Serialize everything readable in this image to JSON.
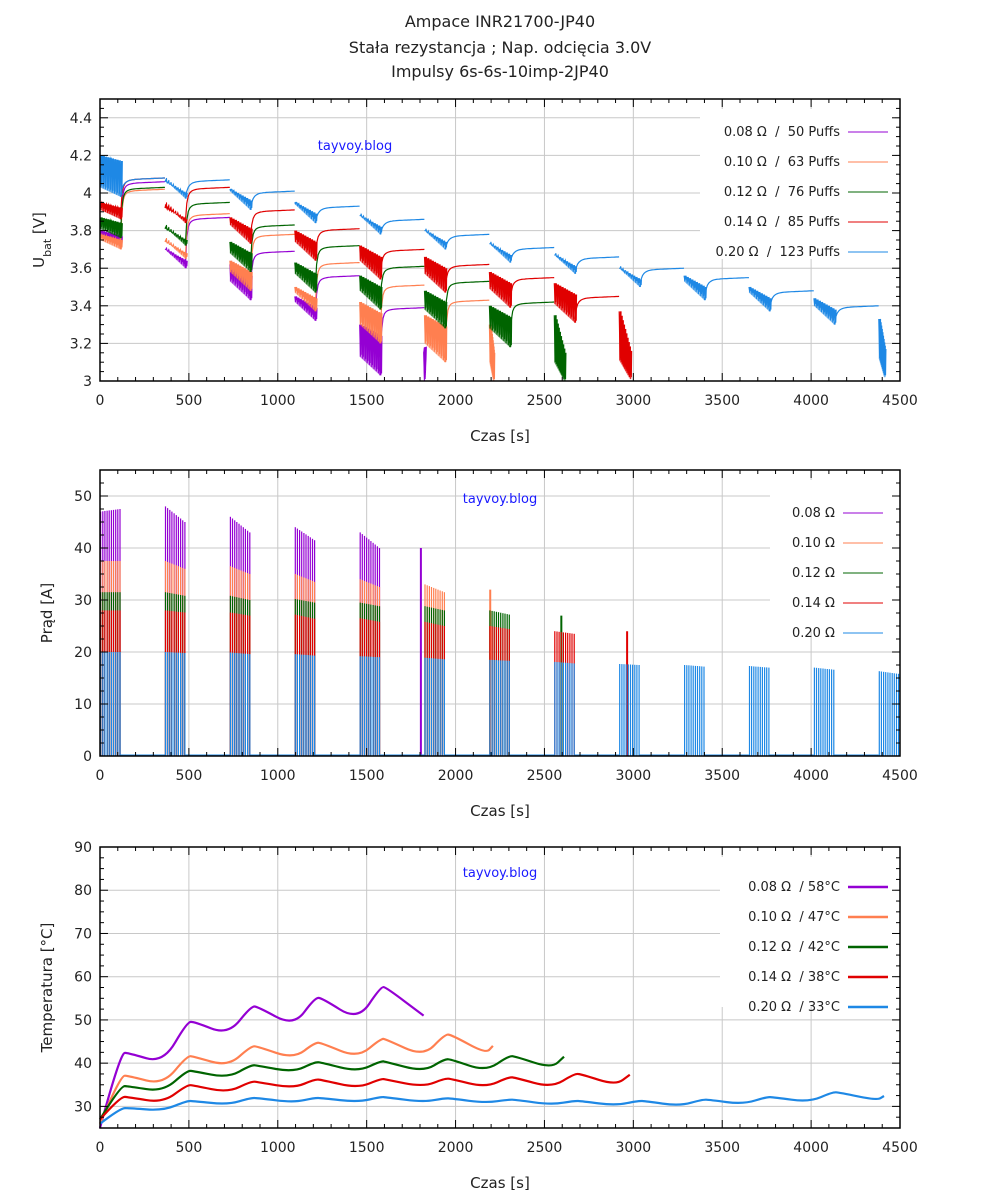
{
  "header": {
    "title_line1": "Ampace INR21700-JP40",
    "title_line2": "Stała rezystancja ; Nap. odcięcia 3.0V",
    "title_line3": "Impulsy 6s-6s-10imp-2JP40"
  },
  "colors": {
    "0.08": "#9400d3",
    "0.10": "#ff7f50",
    "0.12": "#006400",
    "0.14": "#e00000",
    "0.20": "#1e88e5",
    "grid": "#c8c8c8",
    "watermark": "#1a1aff"
  },
  "chart_data": [
    {
      "id": "voltage",
      "type": "line",
      "title": "",
      "xlabel": "Czas [s]",
      "ylabel": "U_bat [V]",
      "ylabel_main": "U",
      "ylabel_sub": "bat",
      "ylabel_unit": " [V]",
      "xlim": [
        0,
        4500
      ],
      "ylim": [
        3.0,
        4.5
      ],
      "xticks": [
        0,
        500,
        1000,
        1500,
        2000,
        2500,
        3000,
        3500,
        4000,
        4500
      ],
      "yticks": [
        3,
        3.2,
        3.4,
        3.6,
        3.8,
        4,
        4.2,
        4.4
      ],
      "ytick_labels": [
        "3",
        "3.2",
        "3.4",
        "3.6",
        "3.8",
        "4",
        "4.2",
        "4.4"
      ],
      "grid": true,
      "watermark": "tayvoy.blog",
      "legend_position": "top-right",
      "block_period_s": 365,
      "block_duration_s": 115,
      "series": [
        {
          "key": "0.08",
          "name": "0.08 Ω  /  50 Puffs",
          "end_s": 1820,
          "rest_v": [
            4.06,
            3.87,
            3.69,
            3.56,
            3.39
          ],
          "pulse_top_v": [
            3.8,
            3.7,
            3.62,
            3.45,
            3.3,
            3.18
          ],
          "pulse_bottom_v": [
            3.72,
            3.6,
            3.43,
            3.32,
            3.03,
            3.0
          ]
        },
        {
          "key": "0.10",
          "name": "0.10 Ω  /  63 Puffs",
          "end_s": 2210,
          "rest_v": [
            4.02,
            3.89,
            3.78,
            3.63,
            3.51,
            3.43
          ],
          "pulse_top_v": [
            3.78,
            3.74,
            3.64,
            3.5,
            3.42,
            3.35,
            3.3
          ],
          "pulse_bottom_v": [
            3.7,
            3.65,
            3.48,
            3.37,
            3.2,
            3.1,
            3.0
          ]
        },
        {
          "key": "0.12",
          "name": "0.12 Ω  /  76 Puffs",
          "end_s": 2610,
          "rest_v": [
            4.03,
            3.95,
            3.83,
            3.72,
            3.61,
            3.53,
            3.42
          ],
          "pulse_top_v": [
            3.87,
            3.81,
            3.74,
            3.63,
            3.56,
            3.48,
            3.4,
            3.35
          ],
          "pulse_bottom_v": [
            3.76,
            3.72,
            3.58,
            3.47,
            3.38,
            3.28,
            3.18,
            3.0
          ]
        },
        {
          "key": "0.14",
          "name": "0.14 Ω  /  85 Puffs",
          "end_s": 2980,
          "rest_v": [
            4.08,
            4.03,
            3.91,
            3.81,
            3.7,
            3.62,
            3.55,
            3.45
          ],
          "pulse_top_v": [
            3.95,
            3.92,
            3.87,
            3.8,
            3.72,
            3.66,
            3.58,
            3.52,
            3.37
          ],
          "pulse_bottom_v": [
            3.86,
            3.84,
            3.73,
            3.64,
            3.54,
            3.47,
            3.39,
            3.31,
            3.01
          ]
        },
        {
          "key": "0.20",
          "name": "0.20 Ω  /  123 Puffs",
          "end_s": 4410,
          "rest_v": [
            4.08,
            4.07,
            4.01,
            3.93,
            3.86,
            3.78,
            3.71,
            3.66,
            3.6,
            3.55,
            3.48,
            3.4
          ],
          "pulse_top_v": [
            4.2,
            4.06,
            4.02,
            3.95,
            3.88,
            3.8,
            3.73,
            3.67,
            3.6,
            3.56,
            3.5,
            3.44,
            3.33
          ],
          "pulse_bottom_v": [
            3.98,
            3.97,
            3.91,
            3.84,
            3.78,
            3.7,
            3.63,
            3.57,
            3.5,
            3.43,
            3.37,
            3.3,
            3.02
          ]
        }
      ]
    },
    {
      "id": "current",
      "type": "bar",
      "title": "",
      "xlabel": "Czas [s]",
      "ylabel": "Prąd [A]",
      "xlim": [
        0,
        4500
      ],
      "ylim": [
        0,
        55
      ],
      "xticks": [
        0,
        500,
        1000,
        1500,
        2000,
        2500,
        3000,
        3500,
        4000,
        4500
      ],
      "yticks": [
        0,
        10,
        20,
        30,
        40,
        50
      ],
      "grid": true,
      "watermark": "tayvoy.blog",
      "legend_position": "top-right",
      "block_period_s": 365,
      "block_duration_s": 115,
      "series": [
        {
          "key": "0.08",
          "name": "0.08 Ω",
          "blocks": 5,
          "final_partial_s": 1820,
          "current_start_a": [
            47,
            48,
            46,
            44,
            43
          ],
          "current_end_a": [
            47.5,
            45,
            43,
            41.5,
            40
          ],
          "final_spike_a": 40
        },
        {
          "key": "0.10",
          "name": "0.10 Ω",
          "blocks": 6,
          "final_partial_s": 2210,
          "current_start_a": [
            37.5,
            37.5,
            36.5,
            35,
            34,
            33
          ],
          "current_end_a": [
            37.5,
            36,
            35,
            33.5,
            32.5,
            31.5
          ],
          "final_spike_a": 32
        },
        {
          "key": "0.12",
          "name": "0.12 Ω",
          "blocks": 7,
          "final_partial_s": 2610,
          "current_start_a": [
            31.5,
            31.5,
            30.8,
            30.2,
            29.5,
            28.8,
            28
          ],
          "current_end_a": [
            31.5,
            30.8,
            30,
            29.5,
            28.8,
            28,
            27.2
          ],
          "final_spike_a": 27
        },
        {
          "key": "0.14",
          "name": "0.14 Ω",
          "blocks": 8,
          "final_partial_s": 2980,
          "current_start_a": [
            28,
            28,
            27.6,
            27.2,
            26.5,
            25.8,
            25,
            24
          ],
          "current_end_a": [
            28,
            27.6,
            27,
            26.4,
            25.8,
            25,
            24.4,
            23.5
          ],
          "final_spike_a": 24
        },
        {
          "key": "0.20",
          "name": "0.20 Ω",
          "blocks": 13,
          "final_partial_s": 4410,
          "current_start_a": [
            20,
            20,
            19.9,
            19.6,
            19.2,
            18.9,
            18.5,
            18.1,
            17.7,
            17.5,
            17.3,
            17.0,
            16.3
          ],
          "current_end_a": [
            20,
            19.8,
            19.6,
            19.3,
            19.0,
            18.6,
            18.3,
            17.8,
            17.5,
            17.2,
            17.0,
            16.6,
            15.8
          ]
        }
      ]
    },
    {
      "id": "temperature",
      "type": "line",
      "title": "",
      "xlabel": "Czas [s]",
      "ylabel": "Temperatura [°C]",
      "xlim": [
        0,
        4500
      ],
      "ylim": [
        25,
        90
      ],
      "xticks": [
        0,
        500,
        1000,
        1500,
        2000,
        2500,
        3000,
        3500,
        4000,
        4500
      ],
      "yticks": [
        30,
        40,
        50,
        60,
        70,
        80,
        90
      ],
      "grid": true,
      "watermark": "tayvoy.blog",
      "legend_position": "top-right",
      "series": [
        {
          "key": "0.08",
          "name": "0.08 Ω  / 58°C",
          "x": [
            0,
            115,
            165,
            355,
            490,
            530,
            720,
            850,
            890,
            1090,
            1210,
            1250,
            1450,
            1580,
            1610,
            1820
          ],
          "y": [
            25,
            42.5,
            42.3,
            40,
            49.5,
            49.6,
            46.5,
            53.2,
            53,
            48.5,
            55.2,
            55,
            49.8,
            57.7,
            57.5,
            51
          ]
        },
        {
          "key": "0.10",
          "name": "0.10 Ω  / 47°C",
          "x": [
            0,
            115,
            165,
            355,
            490,
            530,
            720,
            850,
            890,
            1090,
            1210,
            1250,
            1450,
            1580,
            1610,
            1820,
            1940,
            1980,
            2170,
            2210
          ],
          "y": [
            26,
            37.2,
            37,
            35,
            41.7,
            41.5,
            39.2,
            44,
            43.8,
            41,
            44.8,
            44.6,
            41.2,
            45.7,
            45.5,
            41.5,
            46.7,
            46.5,
            42.2,
            44
          ]
        },
        {
          "key": "0.12",
          "name": "0.12 Ω  / 42°C",
          "x": [
            0,
            115,
            165,
            355,
            490,
            530,
            720,
            850,
            890,
            1090,
            1210,
            1250,
            1450,
            1580,
            1610,
            1820,
            1940,
            1980,
            2170,
            2300,
            2340,
            2540,
            2610
          ],
          "y": [
            27,
            34.8,
            34.6,
            33.4,
            38.3,
            38.1,
            36.6,
            39.6,
            39.4,
            37.9,
            40.3,
            40.1,
            38,
            40.5,
            40.3,
            38,
            41,
            40.8,
            38.1,
            41.7,
            41.5,
            38.8,
            41.5
          ]
        },
        {
          "key": "0.14",
          "name": "0.14 Ω  / 38°C",
          "x": [
            0,
            115,
            165,
            355,
            490,
            530,
            720,
            850,
            890,
            1090,
            1210,
            1250,
            1450,
            1580,
            1610,
            1820,
            1940,
            1980,
            2170,
            2300,
            2340,
            2540,
            2670,
            2710,
            2900,
            2980
          ],
          "y": [
            27,
            32.3,
            32.1,
            30.8,
            35,
            34.8,
            33.2,
            35.8,
            35.6,
            34.2,
            36.3,
            36.1,
            34.2,
            36.4,
            36.2,
            34.5,
            36.5,
            36.3,
            34.4,
            36.8,
            36.6,
            34.3,
            37.6,
            37.4,
            34.9,
            37.3
          ]
        },
        {
          "key": "0.20",
          "name": "0.20 Ω  / 33°C",
          "x": [
            0,
            115,
            165,
            355,
            490,
            530,
            720,
            850,
            890,
            1090,
            1210,
            1250,
            1450,
            1580,
            1610,
            1820,
            1940,
            1980,
            2170,
            2300,
            2340,
            2540,
            2670,
            2710,
            2900,
            3030,
            3070,
            3260,
            3390,
            3430,
            3620,
            3750,
            3790,
            3990,
            4120,
            4160,
            4370,
            4410
          ],
          "y": [
            26,
            29.6,
            29.6,
            29,
            31.3,
            31.2,
            30.4,
            32,
            31.9,
            30.9,
            32,
            31.9,
            31,
            32.2,
            32.1,
            31,
            31.9,
            31.8,
            30.8,
            31.6,
            31.5,
            30.4,
            31.3,
            31.2,
            30.2,
            31.3,
            31.2,
            30.1,
            31.6,
            31.5,
            30.5,
            32.2,
            32.1,
            31,
            33.3,
            33.2,
            31.4,
            32.4
          ]
        }
      ]
    }
  ]
}
